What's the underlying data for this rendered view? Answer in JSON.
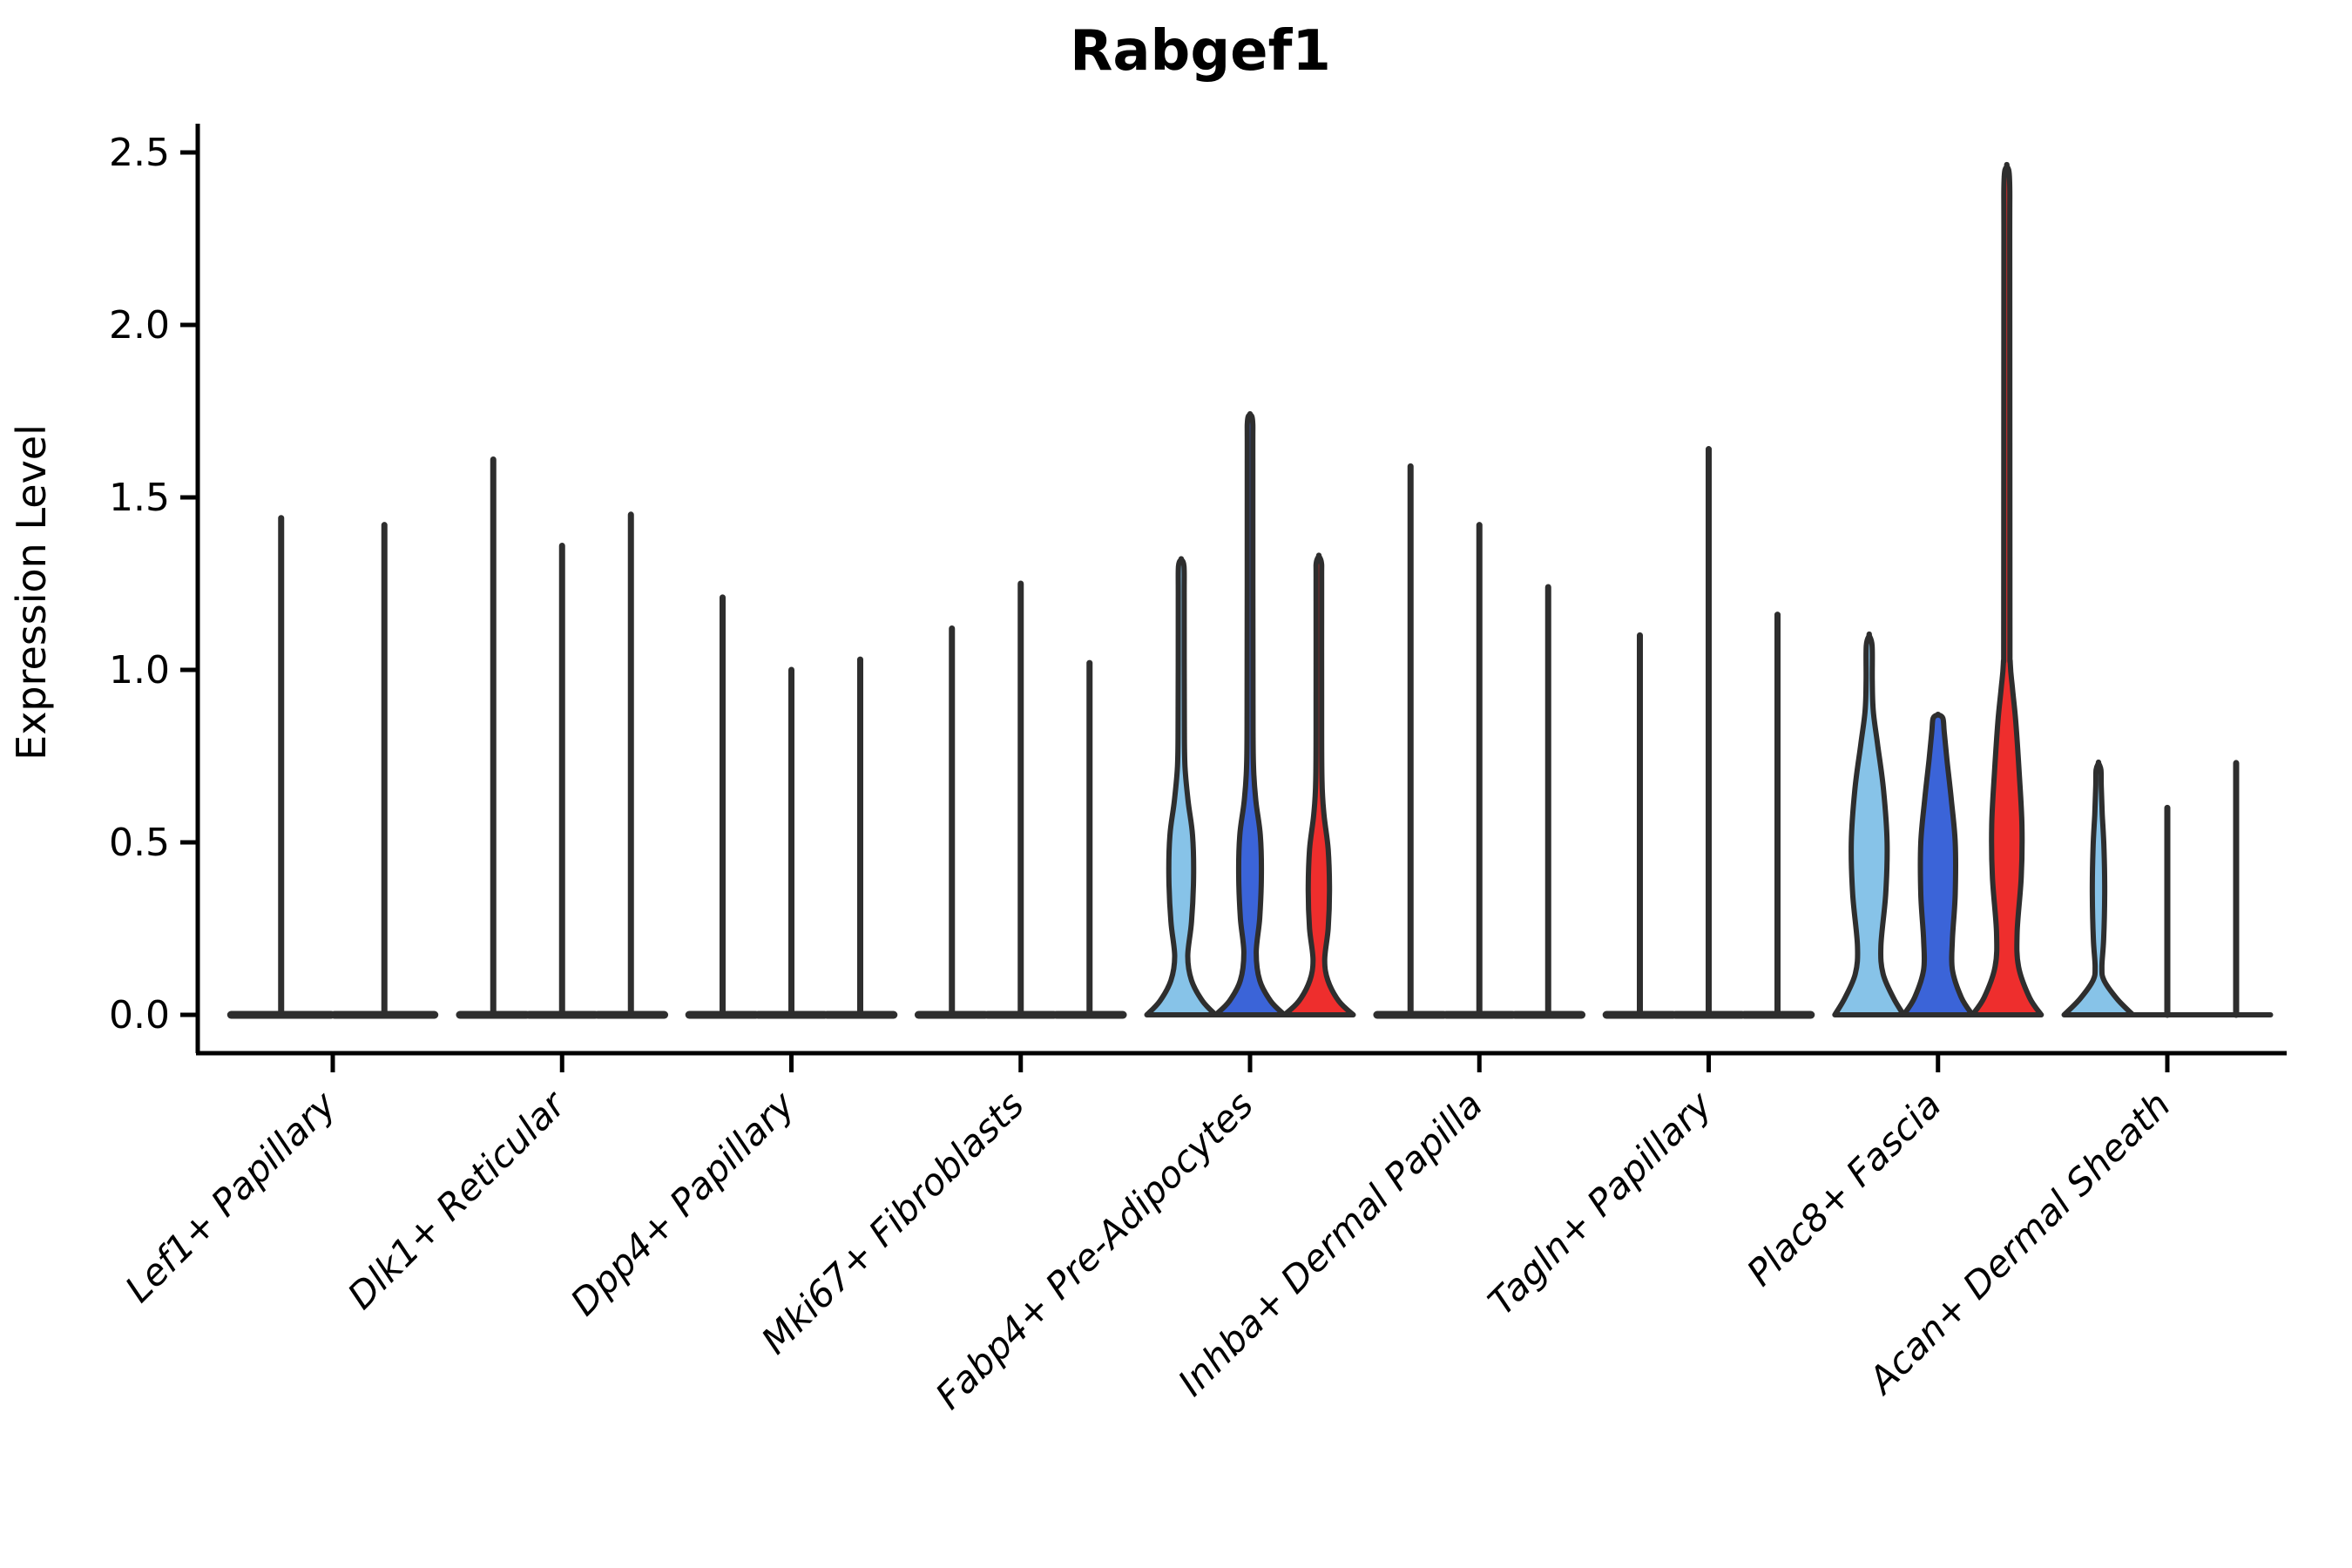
{
  "figure": {
    "title": "Rabgef1",
    "ylabel": "Expression Level"
  },
  "chart_data": {
    "type": "violin",
    "title": "Rabgef1",
    "xlabel": "",
    "ylabel": "Expression Level",
    "yticks": [
      0.0,
      0.5,
      1.0,
      1.5,
      2.0,
      2.5
    ],
    "ylim": [
      -0.11,
      2.58
    ],
    "grid": false,
    "legend": "none",
    "palette": {
      "skyblue": "#87C3E8",
      "blue": "#3B64D8",
      "red": "#EE2E2D",
      "dark": "#2E2E2E"
    },
    "categories": [
      "Lef1+ Papillary",
      "Dlk1+ Reticular",
      "Dpp4+ Papillary",
      "Mki67+ Fibroblasts",
      "Fabp4+ Pre-Adipocytes",
      "Inhba+ Dermal Papilla",
      "Tagln+ Papillary",
      "Plac8+ Fascia",
      "Acan+ Dermal Sheath"
    ],
    "groups": [
      {
        "label": "Lef1+ Papillary",
        "violins": [
          {
            "color": "dark",
            "shape": "spike",
            "max": 1.44
          },
          {
            "color": "dark",
            "shape": "spike",
            "max": 1.42
          }
        ]
      },
      {
        "label": "Dlk1+ Reticular",
        "violins": [
          {
            "color": "dark",
            "shape": "spike",
            "max": 1.61
          },
          {
            "color": "dark",
            "shape": "spike",
            "max": 1.36
          },
          {
            "color": "dark",
            "shape": "spike",
            "max": 1.45
          }
        ]
      },
      {
        "label": "Dpp4+ Papillary",
        "violins": [
          {
            "color": "dark",
            "shape": "spike",
            "max": 1.21
          },
          {
            "color": "dark",
            "shape": "spike",
            "max": 1.0
          },
          {
            "color": "dark",
            "shape": "spike",
            "max": 1.03
          }
        ]
      },
      {
        "label": "Mki67+ Fibroblasts",
        "violins": [
          {
            "color": "dark",
            "shape": "spike",
            "max": 1.12
          },
          {
            "color": "dark",
            "shape": "spike",
            "max": 1.25
          },
          {
            "color": "dark",
            "shape": "spike",
            "max": 1.02
          }
        ]
      },
      {
        "label": "Fabp4+ Pre-Adipocytes",
        "violins": [
          {
            "color": "skyblue",
            "shape": "density",
            "max": 1.32,
            "profile": [
              [
                0,
                1
              ],
              [
                0.04,
                0.62
              ],
              [
                0.1,
                0.3
              ],
              [
                0.17,
                0.19
              ],
              [
                0.27,
                0.3
              ],
              [
                0.4,
                0.36
              ],
              [
                0.52,
                0.33
              ],
              [
                0.62,
                0.2
              ],
              [
                0.72,
                0.11
              ],
              [
                0.85,
                0.09
              ],
              [
                1.2,
                0.085
              ],
              [
                1.3,
                0.08
              ],
              [
                1.32,
                0
              ]
            ]
          },
          {
            "color": "blue",
            "shape": "density",
            "max": 1.74,
            "profile": [
              [
                0,
                1
              ],
              [
                0.04,
                0.6
              ],
              [
                0.1,
                0.28
              ],
              [
                0.18,
                0.18
              ],
              [
                0.28,
                0.28
              ],
              [
                0.4,
                0.33
              ],
              [
                0.52,
                0.3
              ],
              [
                0.62,
                0.17
              ],
              [
                0.72,
                0.1
              ],
              [
                0.9,
                0.085
              ],
              [
                1.6,
                0.08
              ],
              [
                1.72,
                0.075
              ],
              [
                1.74,
                0
              ]
            ]
          },
          {
            "color": "red",
            "shape": "density",
            "max": 1.33,
            "profile": [
              [
                0,
                1
              ],
              [
                0.04,
                0.58
              ],
              [
                0.1,
                0.26
              ],
              [
                0.16,
                0.17
              ],
              [
                0.25,
                0.27
              ],
              [
                0.36,
                0.31
              ],
              [
                0.48,
                0.27
              ],
              [
                0.58,
                0.15
              ],
              [
                0.68,
                0.09
              ],
              [
                0.9,
                0.08
              ],
              [
                1.25,
                0.08
              ],
              [
                1.31,
                0.075
              ],
              [
                1.33,
                0
              ]
            ]
          }
        ]
      },
      {
        "label": "Inhba+ Dermal Papilla",
        "violins": [
          {
            "color": "dark",
            "shape": "spike",
            "max": 1.59
          },
          {
            "color": "dark",
            "shape": "spike",
            "max": 1.42
          },
          {
            "color": "dark",
            "shape": "spike",
            "max": 1.24
          }
        ]
      },
      {
        "label": "Tagln+ Papillary",
        "violins": [
          {
            "color": "dark",
            "shape": "spike",
            "max": 1.1
          },
          {
            "color": "dark",
            "shape": "spike",
            "max": 1.64
          },
          {
            "color": "dark",
            "shape": "spike",
            "max": 1.16
          }
        ]
      },
      {
        "label": "Plac8+ Fascia",
        "violins": [
          {
            "color": "skyblue",
            "shape": "density",
            "max": 1.1,
            "profile": [
              [
                0,
                1
              ],
              [
                0.05,
                0.7
              ],
              [
                0.12,
                0.4
              ],
              [
                0.2,
                0.34
              ],
              [
                0.35,
                0.48
              ],
              [
                0.5,
                0.52
              ],
              [
                0.65,
                0.42
              ],
              [
                0.78,
                0.25
              ],
              [
                0.88,
                0.12
              ],
              [
                0.97,
                0.09
              ],
              [
                1.07,
                0.085
              ],
              [
                1.1,
                0
              ]
            ]
          },
          {
            "color": "blue",
            "shape": "density",
            "max": 0.87,
            "profile": [
              [
                0,
                1
              ],
              [
                0.05,
                0.68
              ],
              [
                0.13,
                0.42
              ],
              [
                0.22,
                0.42
              ],
              [
                0.35,
                0.5
              ],
              [
                0.5,
                0.5
              ],
              [
                0.63,
                0.38
              ],
              [
                0.74,
                0.26
              ],
              [
                0.82,
                0.18
              ],
              [
                0.86,
                0.14
              ],
              [
                0.87,
                0
              ]
            ]
          },
          {
            "color": "red",
            "shape": "density",
            "max": 2.46,
            "profile": [
              [
                0,
                1
              ],
              [
                0.05,
                0.66
              ],
              [
                0.14,
                0.34
              ],
              [
                0.24,
                0.3
              ],
              [
                0.4,
                0.42
              ],
              [
                0.55,
                0.44
              ],
              [
                0.7,
                0.36
              ],
              [
                0.85,
                0.26
              ],
              [
                0.95,
                0.16
              ],
              [
                1.02,
                0.1
              ],
              [
                1.15,
                0.09
              ],
              [
                2.2,
                0.085
              ],
              [
                2.42,
                0.08
              ],
              [
                2.46,
                0
              ]
            ]
          }
        ]
      },
      {
        "label": "Acan+ Dermal Sheath",
        "violins": [
          {
            "color": "skyblue",
            "shape": "density",
            "max": 0.73,
            "profile": [
              [
                0,
                1
              ],
              [
                0.045,
                0.55
              ],
              [
                0.1,
                0.16
              ],
              [
                0.14,
                0.1
              ],
              [
                0.22,
                0.15
              ],
              [
                0.35,
                0.18
              ],
              [
                0.48,
                0.16
              ],
              [
                0.58,
                0.11
              ],
              [
                0.66,
                0.08
              ],
              [
                0.71,
                0.07
              ],
              [
                0.73,
                0
              ]
            ]
          },
          {
            "color": "dark",
            "shape": "spike",
            "max": 0.6,
            "thin_base": true
          },
          {
            "color": "dark",
            "shape": "spike",
            "max": 0.73,
            "thin_base": true
          }
        ]
      }
    ]
  }
}
